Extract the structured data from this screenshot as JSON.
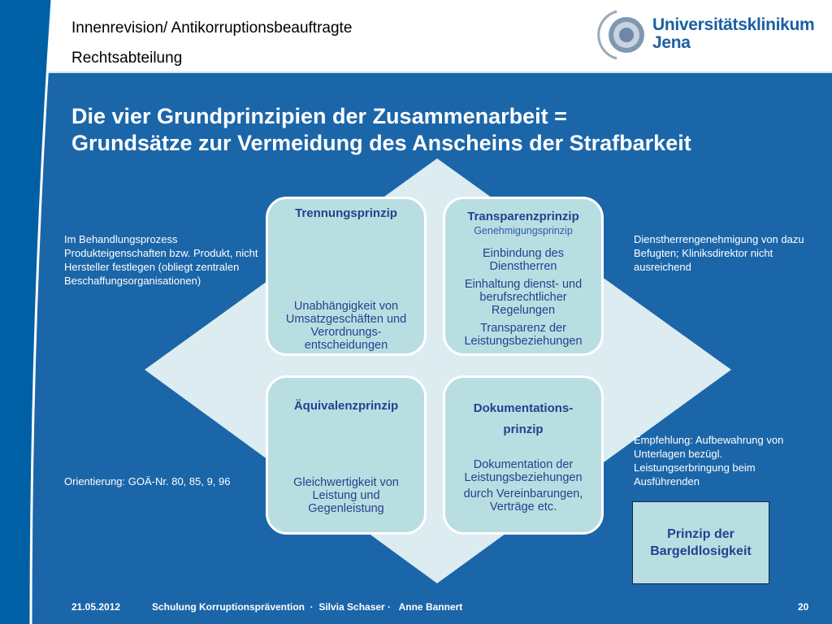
{
  "header": {
    "line1": "Innenrevision/ Antikorruptionsbeauftragte",
    "line2": "Rechtsabteilung",
    "logo_text": "Universitätsklinikum Jena",
    "logo_line1": "Universitätsklinikum",
    "logo_line2": "Jena"
  },
  "title": {
    "line1": "Die vier Grundprinzipien der Zusammenarbeit =",
    "line2": "Grundsätze zur Vermeidung des Anscheins der Strafbarkeit"
  },
  "principles": [
    {
      "heading": "Trennungsprinzip",
      "body": [
        "Unabhängigkeit von Umsatzgeschäften und Verordnungs-entscheidungen"
      ]
    },
    {
      "heading": "Transparenzprinzip",
      "subheading": "Genehmigungsprinzip",
      "body": [
        "Einbindung des Dienstherren",
        "Einhaltung dienst- und berufsrechtlicher Regelungen",
        "Transparenz der Leistungsbeziehungen"
      ]
    },
    {
      "heading": "Äquivalenzprinzip",
      "body": [
        "Gleichwertigkeit von Leistung und Gegenleistung"
      ]
    },
    {
      "heading": "Dokumentations-prinzip",
      "body": [
        "Dokumentation der Leistungsbeziehungen",
        "durch Vereinbarungen, Verträge etc."
      ]
    }
  ],
  "notes": {
    "left_top": "Im Behandlungsprozess Produkteigenschaften bzw. Produkt, nicht Hersteller festlegen (obliegt zentralen Beschaffungsorganisationen)",
    "left_bottom": "Orientierung: GOÄ-Nr. 80, 85, 9, 96",
    "right_top": "Dienstherrengenehmigung von dazu Befugten; Kliniksdirektor nicht ausreichend",
    "right_bottom": "Empfehlung: Aufbewahrung von Unterlagen bezügl. Leistungserbringung beim Ausführenden"
  },
  "extra_box": "Prinzip der Bargeldlosigkeit",
  "footer": {
    "date": "21.05.2012",
    "event": "Schulung Korruptionsprävention  ·  Silvia Schaser ·   Anne Bannert",
    "page": "20"
  },
  "colors": {
    "background": "#1b66a9",
    "band": "#0060a6",
    "diamond": "#dcecf0",
    "box": "#b9dee2",
    "text_box": "#26408f"
  }
}
